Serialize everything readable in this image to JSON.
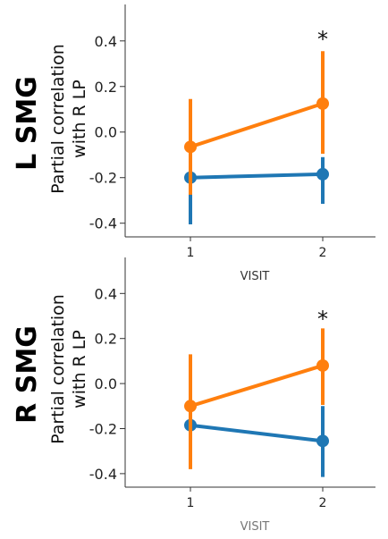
{
  "chart_data": [
    {
      "type": "line",
      "panel_label": "L SMG",
      "ylabel": [
        "Partial correlation",
        "with R LP"
      ],
      "xlabel": "VISIT",
      "categories": [
        "1",
        "2"
      ],
      "yticks": [
        "0.4",
        "0.2",
        "0.0",
        "-0.2",
        "-0.4"
      ],
      "ytick_values": [
        0.4,
        0.2,
        0.0,
        -0.2,
        -0.4
      ],
      "ylim": [
        -0.46,
        0.56
      ],
      "annotation": "*",
      "annotation_category": "2",
      "series": [
        {
          "color": "#ff7f0e",
          "values": [
            -0.065,
            0.125
          ],
          "error_low": [
            -0.275,
            -0.095
          ],
          "error_high": [
            0.145,
            0.355
          ]
        },
        {
          "color": "#1f77b4",
          "values": [
            -0.2,
            -0.185
          ],
          "error_low": [
            -0.405,
            -0.315
          ],
          "error_high": [
            -0.19,
            -0.11
          ]
        }
      ]
    },
    {
      "type": "line",
      "panel_label": "R SMG",
      "ylabel": [
        "Partial correlation",
        "with R LP"
      ],
      "xlabel": "VISIT",
      "categories": [
        "1",
        "2"
      ],
      "yticks": [
        "0.4",
        "0.2",
        "0.0",
        "-0.2",
        "-0.4"
      ],
      "ytick_values": [
        0.4,
        0.2,
        0.0,
        -0.2,
        -0.4
      ],
      "ylim": [
        -0.46,
        0.56
      ],
      "annotation": "*",
      "annotation_category": "2",
      "series": [
        {
          "color": "#ff7f0e",
          "values": [
            -0.1,
            0.08
          ],
          "error_low": [
            -0.38,
            -0.095
          ],
          "error_high": [
            0.13,
            0.245
          ]
        },
        {
          "color": "#1f77b4",
          "values": [
            -0.185,
            -0.255
          ],
          "error_low": [
            -0.34,
            -0.415
          ],
          "error_high": [
            -0.18,
            -0.1
          ]
        }
      ]
    }
  ]
}
